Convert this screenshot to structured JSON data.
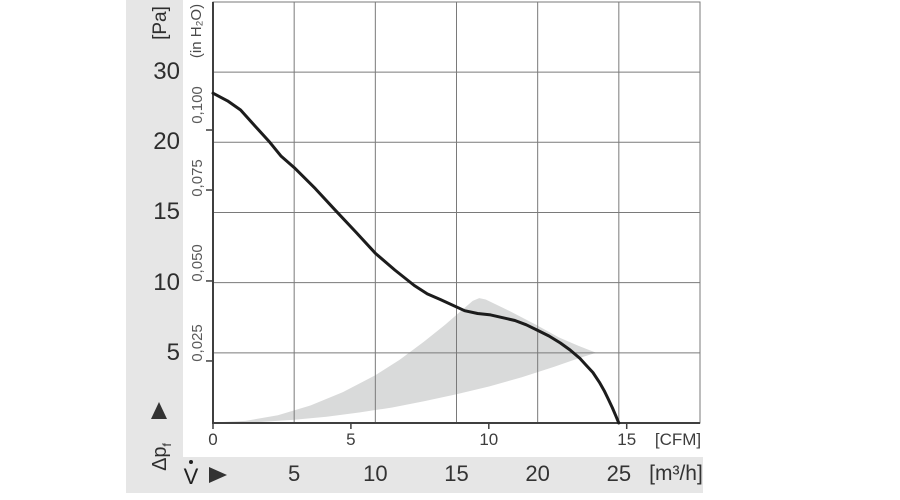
{
  "colors": {
    "band": "#e6e6e6",
    "operating_region": "#d9dada",
    "grid": "#7a7a7a",
    "axis": "#3f3f3f",
    "curve": "#1c1c1c"
  },
  "chart_data": {
    "type": "line",
    "title": "",
    "y_axis": {
      "unit_primary": "[Pa]",
      "unit_secondary": "(in H₂O)",
      "symbol": "Δp",
      "symbol_sub": "f",
      "gridlines_pa": [
        5,
        10,
        15,
        20,
        30
      ],
      "ylim_pa": [
        0,
        40
      ],
      "scale_note": "compressed above 20 Pa",
      "ticks_inh2o": [
        {
          "label": "0,100",
          "tick_pa": 21.75,
          "label_pa": 25.3
        },
        {
          "label": "0,075",
          "tick_pa": 16.6,
          "label_pa": 17.45
        },
        {
          "label": "0,050",
          "tick_pa": 10.12,
          "label_pa": 11.4
        },
        {
          "label": "0,025",
          "tick_pa": 4.42,
          "label_pa": 5.7
        }
      ]
    },
    "x_axis": {
      "unit_row1": "[CFM]",
      "unit_row2": "[m³/h]",
      "symbol": "V",
      "ticks_cfm": [
        0,
        5,
        10,
        15
      ],
      "ticks_m3h": [
        5,
        10,
        15,
        20,
        25
      ],
      "xlim_m3h": [
        0,
        30
      ],
      "cfm_to_m3h": 1.699
    },
    "series": [
      {
        "name": "fan-characteristic-curve",
        "points_m3h_pa": [
          [
            0,
            27
          ],
          [
            0.9,
            25.9
          ],
          [
            1.7,
            24.6
          ],
          [
            2.6,
            22.3
          ],
          [
            3.5,
            20.0
          ],
          [
            4.2,
            19.0
          ],
          [
            5.0,
            18.2
          ],
          [
            6.3,
            16.7
          ],
          [
            7.5,
            15.2
          ],
          [
            8.8,
            13.6
          ],
          [
            10.0,
            12.1
          ],
          [
            11.2,
            10.9
          ],
          [
            12.4,
            9.8
          ],
          [
            13.2,
            9.2
          ],
          [
            14.0,
            8.8
          ],
          [
            15.5,
            8.0
          ],
          [
            16.3,
            7.8
          ],
          [
            17.1,
            7.7
          ],
          [
            18.6,
            7.3
          ],
          [
            19.3,
            7.0
          ],
          [
            20.0,
            6.6
          ],
          [
            20.7,
            6.2
          ],
          [
            21.4,
            5.7
          ],
          [
            22.0,
            5.2
          ],
          [
            22.6,
            4.6
          ],
          [
            23.0,
            4.1
          ],
          [
            23.4,
            3.6
          ],
          [
            23.8,
            2.9
          ],
          [
            24.1,
            2.3
          ],
          [
            24.35,
            1.7
          ],
          [
            24.6,
            1.1
          ],
          [
            24.8,
            0.55
          ],
          [
            25.0,
            0
          ]
        ]
      }
    ],
    "operating_region_m3h_pa": [
      [
        0.3,
        0.05
      ],
      [
        2,
        0.15
      ],
      [
        4,
        0.55
      ],
      [
        6,
        1.25
      ],
      [
        8,
        2.2
      ],
      [
        10,
        3.4
      ],
      [
        11.5,
        4.5
      ],
      [
        13,
        5.8
      ],
      [
        14.3,
        7.0
      ],
      [
        15.4,
        8.1
      ],
      [
        16.0,
        8.7
      ],
      [
        16.4,
        8.9
      ],
      [
        16.8,
        8.8
      ],
      [
        18.4,
        7.9
      ],
      [
        19.9,
        7.0
      ],
      [
        21.3,
        6.1
      ],
      [
        22.5,
        5.5
      ],
      [
        23.6,
        5.0
      ],
      [
        22.5,
        4.6
      ],
      [
        21,
        4.0
      ],
      [
        19,
        3.25
      ],
      [
        17,
        2.6
      ],
      [
        15,
        2.05
      ],
      [
        13,
        1.55
      ],
      [
        11,
        1.1
      ],
      [
        9,
        0.75
      ],
      [
        7,
        0.45
      ],
      [
        5,
        0.23
      ],
      [
        3,
        0.08
      ],
      [
        1,
        0.02
      ]
    ]
  }
}
